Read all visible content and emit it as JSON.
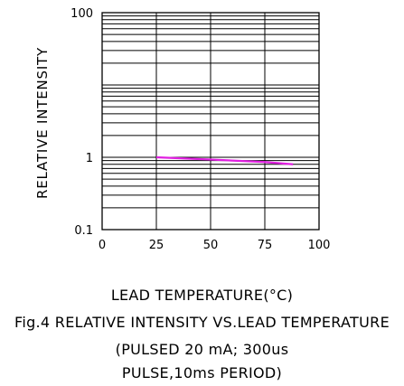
{
  "chart_data": {
    "type": "line",
    "xlabel": "LEAD TEMPERATURE(°C)",
    "ylabel": "RELATIVE INTENSITY",
    "x_ticks": [
      "0",
      "25",
      "50",
      "75",
      "100"
    ],
    "y_ticks": [
      "100",
      "1",
      "0.1"
    ],
    "xlim": [
      0,
      100
    ],
    "ylim": [
      0.1,
      100
    ],
    "y_scale": "log",
    "grid": true,
    "series": [
      {
        "color": "#e020e0",
        "x": [
          25,
          50,
          75,
          88
        ],
        "y": [
          1.0,
          0.93,
          0.86,
          0.8
        ]
      }
    ]
  },
  "caption": {
    "title": "Fig.4 RELATIVE INTENSITY VS.LEAD TEMPERATURE",
    "conditions_line1": "(PULSED 20 mA; 300us",
    "conditions_line2": "PULSE,10ms PERIOD)"
  }
}
